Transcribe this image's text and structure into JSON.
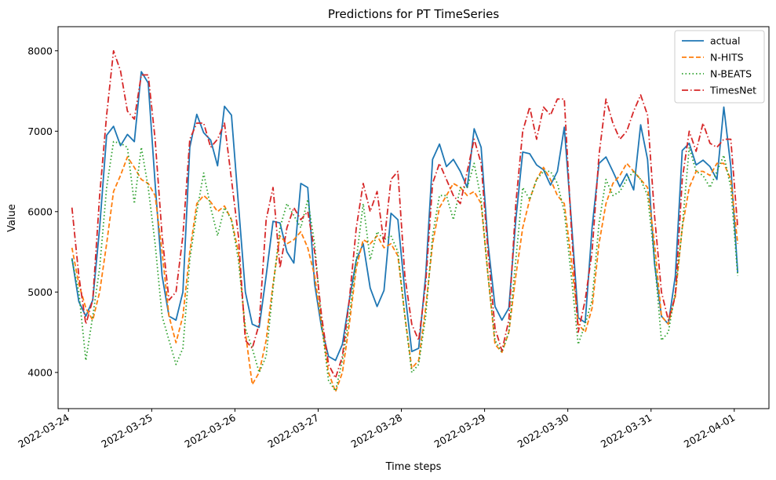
{
  "chart_data": {
    "type": "line",
    "title": "Predictions for PT TimeSeries",
    "xlabel": "Time steps",
    "ylabel": "Value",
    "x_unit": "date",
    "xlim": [
      "2022-03-23T21:00",
      "2022-04-01T10:00"
    ],
    "ylim": [
      3550,
      8300
    ],
    "yticks": [
      4000,
      5000,
      6000,
      7000,
      8000
    ],
    "xticks": [
      "2022-03-24",
      "2022-03-25",
      "2022-03-26",
      "2022-03-27",
      "2022-03-28",
      "2022-03-29",
      "2022-03-30",
      "2022-03-31",
      "2022-04-01"
    ],
    "legend": "top-right",
    "grid": false,
    "series": [
      {
        "name": "actual",
        "color": "#1f77b4",
        "dash": "solid",
        "x": [
          "2022-03-24T01:00",
          "2022-03-24T03:00",
          "2022-03-24T05:00",
          "2022-03-24T07:00",
          "2022-03-24T09:00",
          "2022-03-24T11:00",
          "2022-03-24T13:00",
          "2022-03-24T15:00",
          "2022-03-24T17:00",
          "2022-03-24T19:00",
          "2022-03-24T21:00",
          "2022-03-24T23:00",
          "2022-03-25T01:00",
          "2022-03-25T03:00",
          "2022-03-25T05:00",
          "2022-03-25T07:00",
          "2022-03-25T09:00",
          "2022-03-25T11:00",
          "2022-03-25T13:00",
          "2022-03-25T15:00",
          "2022-03-25T17:00",
          "2022-03-25T19:00",
          "2022-03-25T21:00",
          "2022-03-25T23:00",
          "2022-03-26T01:00",
          "2022-03-26T03:00",
          "2022-03-26T05:00",
          "2022-03-26T07:00",
          "2022-03-26T09:00",
          "2022-03-26T11:00",
          "2022-03-26T13:00",
          "2022-03-26T15:00",
          "2022-03-26T17:00",
          "2022-03-26T19:00",
          "2022-03-26T21:00",
          "2022-03-26T23:00",
          "2022-03-27T01:00",
          "2022-03-27T03:00",
          "2022-03-27T05:00",
          "2022-03-27T07:00",
          "2022-03-27T09:00",
          "2022-03-27T11:00",
          "2022-03-27T13:00",
          "2022-03-27T15:00",
          "2022-03-27T17:00",
          "2022-03-27T19:00",
          "2022-03-27T21:00",
          "2022-03-27T23:00",
          "2022-03-28T01:00",
          "2022-03-28T03:00",
          "2022-03-28T05:00",
          "2022-03-28T07:00",
          "2022-03-28T09:00",
          "2022-03-28T11:00",
          "2022-03-28T13:00",
          "2022-03-28T15:00",
          "2022-03-28T17:00",
          "2022-03-28T19:00",
          "2022-03-28T21:00",
          "2022-03-28T23:00",
          "2022-03-29T01:00",
          "2022-03-29T03:00",
          "2022-03-29T05:00",
          "2022-03-29T07:00",
          "2022-03-29T09:00",
          "2022-03-29T11:00",
          "2022-03-29T13:00",
          "2022-03-29T15:00",
          "2022-03-29T17:00",
          "2022-03-29T19:00",
          "2022-03-29T21:00",
          "2022-03-29T23:00",
          "2022-03-30T01:00",
          "2022-03-30T03:00",
          "2022-03-30T05:00",
          "2022-03-30T07:00",
          "2022-03-30T09:00",
          "2022-03-30T11:00",
          "2022-03-30T13:00",
          "2022-03-30T15:00",
          "2022-03-30T17:00",
          "2022-03-30T19:00",
          "2022-03-30T21:00",
          "2022-03-30T23:00",
          "2022-03-31T01:00",
          "2022-03-31T03:00",
          "2022-03-31T05:00",
          "2022-03-31T07:00",
          "2022-03-31T09:00",
          "2022-03-31T11:00",
          "2022-03-31T13:00",
          "2022-03-31T15:00",
          "2022-03-31T17:00",
          "2022-03-31T19:00",
          "2022-03-31T21:00",
          "2022-03-31T23:00",
          "2022-04-01T01:00"
        ],
        "values": [
          5420,
          4880,
          4700,
          4900,
          5800,
          6950,
          7060,
          6820,
          6960,
          6870,
          7740,
          7600,
          6350,
          5200,
          4700,
          4650,
          5000,
          6800,
          7210,
          6980,
          6890,
          6570,
          7310,
          7200,
          6100,
          5000,
          4600,
          4560,
          5200,
          5880,
          5860,
          5500,
          5360,
          6350,
          6300,
          5100,
          4550,
          4200,
          4150,
          4350,
          4900,
          5400,
          5600,
          5050,
          4820,
          5020,
          5980,
          5900,
          5000,
          4260,
          4300,
          5200,
          6650,
          6840,
          6560,
          6650,
          6500,
          6300,
          7030,
          6800,
          5600,
          4820,
          4650,
          4800,
          5900,
          6740,
          6720,
          6580,
          6520,
          6330,
          6500,
          7050,
          5900,
          4680,
          4620,
          5800,
          6600,
          6680,
          6500,
          6310,
          6470,
          6270,
          7080,
          6650,
          5350,
          4700,
          4600,
          5200,
          6760,
          6850,
          6580,
          6640,
          6560,
          6400,
          7300,
          6560,
          5240
        ]
      },
      {
        "name": "N-HITS",
        "color": "#ff7f0e",
        "dash": "dashed",
        "x": [
          "2022-03-24T01:00",
          "2022-03-24T03:00",
          "2022-03-24T05:00",
          "2022-03-24T07:00",
          "2022-03-24T09:00",
          "2022-03-24T11:00",
          "2022-03-24T13:00",
          "2022-03-24T15:00",
          "2022-03-24T17:00",
          "2022-03-24T19:00",
          "2022-03-24T21:00",
          "2022-03-24T23:00",
          "2022-03-25T01:00",
          "2022-03-25T03:00",
          "2022-03-25T05:00",
          "2022-03-25T07:00",
          "2022-03-25T09:00",
          "2022-03-25T11:00",
          "2022-03-25T13:00",
          "2022-03-25T15:00",
          "2022-03-25T17:00",
          "2022-03-25T19:00",
          "2022-03-25T21:00",
          "2022-03-25T23:00",
          "2022-03-26T01:00",
          "2022-03-26T03:00",
          "2022-03-26T05:00",
          "2022-03-26T07:00",
          "2022-03-26T09:00",
          "2022-03-26T11:00",
          "2022-03-26T13:00",
          "2022-03-26T15:00",
          "2022-03-26T17:00",
          "2022-03-26T19:00",
          "2022-03-26T21:00",
          "2022-03-26T23:00",
          "2022-03-27T01:00",
          "2022-03-27T03:00",
          "2022-03-27T05:00",
          "2022-03-27T07:00",
          "2022-03-27T09:00",
          "2022-03-27T11:00",
          "2022-03-27T13:00",
          "2022-03-27T15:00",
          "2022-03-27T17:00",
          "2022-03-27T19:00",
          "2022-03-27T21:00",
          "2022-03-27T23:00",
          "2022-03-28T01:00",
          "2022-03-28T03:00",
          "2022-03-28T05:00",
          "2022-03-28T07:00",
          "2022-03-28T09:00",
          "2022-03-28T11:00",
          "2022-03-28T13:00",
          "2022-03-28T15:00",
          "2022-03-28T17:00",
          "2022-03-28T19:00",
          "2022-03-28T21:00",
          "2022-03-28T23:00",
          "2022-03-29T01:00",
          "2022-03-29T03:00",
          "2022-03-29T05:00",
          "2022-03-29T07:00",
          "2022-03-29T09:00",
          "2022-03-29T11:00",
          "2022-03-29T13:00",
          "2022-03-29T15:00",
          "2022-03-29T17:00",
          "2022-03-29T19:00",
          "2022-03-29T21:00",
          "2022-03-29T23:00",
          "2022-03-30T01:00",
          "2022-03-30T03:00",
          "2022-03-30T05:00",
          "2022-03-30T07:00",
          "2022-03-30T09:00",
          "2022-03-30T11:00",
          "2022-03-30T13:00",
          "2022-03-30T15:00",
          "2022-03-30T17:00",
          "2022-03-30T19:00",
          "2022-03-30T21:00",
          "2022-03-30T23:00",
          "2022-03-31T01:00",
          "2022-03-31T03:00",
          "2022-03-31T05:00",
          "2022-03-31T07:00",
          "2022-03-31T09:00",
          "2022-03-31T11:00",
          "2022-03-31T13:00",
          "2022-03-31T15:00",
          "2022-03-31T17:00",
          "2022-03-31T19:00",
          "2022-03-31T21:00",
          "2022-03-31T23:00",
          "2022-04-01T01:00"
        ],
        "values": [
          5550,
          5100,
          4800,
          4650,
          5000,
          5600,
          6250,
          6450,
          6680,
          6550,
          6400,
          6350,
          6200,
          5500,
          4700,
          4370,
          4700,
          5500,
          6100,
          6200,
          6120,
          6000,
          6070,
          5900,
          5500,
          4500,
          3850,
          4000,
          4400,
          5100,
          5700,
          5600,
          5650,
          5750,
          5550,
          5200,
          4600,
          4000,
          3760,
          4000,
          4600,
          5300,
          5650,
          5600,
          5700,
          5550,
          5600,
          5450,
          4700,
          4050,
          4150,
          4800,
          5600,
          6050,
          6200,
          6350,
          6300,
          6200,
          6250,
          6100,
          5200,
          4350,
          4250,
          4500,
          5200,
          5800,
          6150,
          6400,
          6550,
          6400,
          6200,
          6100,
          5400,
          4600,
          4500,
          4800,
          5600,
          6100,
          6350,
          6450,
          6600,
          6500,
          6400,
          6300,
          5600,
          4700,
          4600,
          4950,
          5800,
          6300,
          6500,
          6500,
          6450,
          6600,
          6600,
          6400,
          5600
        ]
      },
      {
        "name": "N-BEATS",
        "color": "#2ca02c",
        "dash": "dotted",
        "x": [
          "2022-03-24T01:00",
          "2022-03-24T03:00",
          "2022-03-24T05:00",
          "2022-03-24T07:00",
          "2022-03-24T09:00",
          "2022-03-24T11:00",
          "2022-03-24T13:00",
          "2022-03-24T15:00",
          "2022-03-24T17:00",
          "2022-03-24T19:00",
          "2022-03-24T21:00",
          "2022-03-24T23:00",
          "2022-03-25T01:00",
          "2022-03-25T03:00",
          "2022-03-25T05:00",
          "2022-03-25T07:00",
          "2022-03-25T09:00",
          "2022-03-25T11:00",
          "2022-03-25T13:00",
          "2022-03-25T15:00",
          "2022-03-25T17:00",
          "2022-03-25T19:00",
          "2022-03-25T21:00",
          "2022-03-25T23:00",
          "2022-03-26T01:00",
          "2022-03-26T03:00",
          "2022-03-26T05:00",
          "2022-03-26T07:00",
          "2022-03-26T09:00",
          "2022-03-26T11:00",
          "2022-03-26T13:00",
          "2022-03-26T15:00",
          "2022-03-26T17:00",
          "2022-03-26T19:00",
          "2022-03-26T21:00",
          "2022-03-26T23:00",
          "2022-03-27T01:00",
          "2022-03-27T03:00",
          "2022-03-27T05:00",
          "2022-03-27T07:00",
          "2022-03-27T09:00",
          "2022-03-27T11:00",
          "2022-03-27T13:00",
          "2022-03-27T15:00",
          "2022-03-27T17:00",
          "2022-03-27T19:00",
          "2022-03-27T21:00",
          "2022-03-27T23:00",
          "2022-03-28T01:00",
          "2022-03-28T03:00",
          "2022-03-28T05:00",
          "2022-03-28T07:00",
          "2022-03-28T09:00",
          "2022-03-28T11:00",
          "2022-03-28T13:00",
          "2022-03-28T15:00",
          "2022-03-28T17:00",
          "2022-03-28T19:00",
          "2022-03-28T21:00",
          "2022-03-28T23:00",
          "2022-03-29T01:00",
          "2022-03-29T03:00",
          "2022-03-29T05:00",
          "2022-03-29T07:00",
          "2022-03-29T09:00",
          "2022-03-29T11:00",
          "2022-03-29T13:00",
          "2022-03-29T15:00",
          "2022-03-29T17:00",
          "2022-03-29T19:00",
          "2022-03-29T21:00",
          "2022-03-29T23:00",
          "2022-03-30T01:00",
          "2022-03-30T03:00",
          "2022-03-30T05:00",
          "2022-03-30T07:00",
          "2022-03-30T09:00",
          "2022-03-30T11:00",
          "2022-03-30T13:00",
          "2022-03-30T15:00",
          "2022-03-30T17:00",
          "2022-03-30T19:00",
          "2022-03-30T21:00",
          "2022-03-30T23:00",
          "2022-03-31T01:00",
          "2022-03-31T03:00",
          "2022-03-31T05:00",
          "2022-03-31T07:00",
          "2022-03-31T09:00",
          "2022-03-31T11:00",
          "2022-03-31T13:00",
          "2022-03-31T15:00",
          "2022-03-31T17:00",
          "2022-03-31T19:00",
          "2022-03-31T21:00",
          "2022-03-31T23:00",
          "2022-04-01T01:00"
        ],
        "values": [
          5400,
          5000,
          4150,
          4700,
          5300,
          6300,
          6870,
          6850,
          6800,
          6100,
          6800,
          6300,
          5600,
          4700,
          4400,
          4100,
          4300,
          5400,
          6000,
          6480,
          6050,
          5700,
          6050,
          5900,
          5400,
          4550,
          4300,
          4000,
          4200,
          5050,
          5800,
          6100,
          5950,
          5800,
          6150,
          5600,
          4600,
          3900,
          3770,
          4150,
          4700,
          5400,
          6100,
          5400,
          5750,
          5650,
          5700,
          5500,
          4700,
          4000,
          4100,
          4700,
          5700,
          6200,
          6200,
          5900,
          6300,
          6300,
          6600,
          6150,
          5200,
          4400,
          4250,
          4500,
          5400,
          6300,
          6150,
          6400,
          6500,
          6500,
          6350,
          6000,
          5200,
          4350,
          4600,
          4900,
          5850,
          6400,
          6200,
          6250,
          6400,
          6500,
          6400,
          6200,
          5400,
          4400,
          4500,
          5000,
          5800,
          6800,
          6500,
          6450,
          6300,
          6500,
          6700,
          6300,
          5200
        ]
      },
      {
        "name": "TimesNet",
        "color": "#d62728",
        "dash": "dashdot",
        "x": [
          "2022-03-24T01:00",
          "2022-03-24T03:00",
          "2022-03-24T05:00",
          "2022-03-24T07:00",
          "2022-03-24T09:00",
          "2022-03-24T11:00",
          "2022-03-24T13:00",
          "2022-03-24T15:00",
          "2022-03-24T17:00",
          "2022-03-24T19:00",
          "2022-03-24T21:00",
          "2022-03-24T23:00",
          "2022-03-25T01:00",
          "2022-03-25T03:00",
          "2022-03-25T05:00",
          "2022-03-25T07:00",
          "2022-03-25T09:00",
          "2022-03-25T11:00",
          "2022-03-25T13:00",
          "2022-03-25T15:00",
          "2022-03-25T17:00",
          "2022-03-25T19:00",
          "2022-03-25T21:00",
          "2022-03-25T23:00",
          "2022-03-26T01:00",
          "2022-03-26T03:00",
          "2022-03-26T05:00",
          "2022-03-26T07:00",
          "2022-03-26T09:00",
          "2022-03-26T11:00",
          "2022-03-26T13:00",
          "2022-03-26T15:00",
          "2022-03-26T17:00",
          "2022-03-26T19:00",
          "2022-03-26T21:00",
          "2022-03-26T23:00",
          "2022-03-27T01:00",
          "2022-03-27T03:00",
          "2022-03-27T05:00",
          "2022-03-27T07:00",
          "2022-03-27T09:00",
          "2022-03-27T11:00",
          "2022-03-27T13:00",
          "2022-03-27T15:00",
          "2022-03-27T17:00",
          "2022-03-27T19:00",
          "2022-03-27T21:00",
          "2022-03-27T23:00",
          "2022-03-28T01:00",
          "2022-03-28T03:00",
          "2022-03-28T05:00",
          "2022-03-28T07:00",
          "2022-03-28T09:00",
          "2022-03-28T11:00",
          "2022-03-28T13:00",
          "2022-03-28T15:00",
          "2022-03-28T17:00",
          "2022-03-28T19:00",
          "2022-03-28T21:00",
          "2022-03-28T23:00",
          "2022-03-29T01:00",
          "2022-03-29T03:00",
          "2022-03-29T05:00",
          "2022-03-29T07:00",
          "2022-03-29T09:00",
          "2022-03-29T11:00",
          "2022-03-29T13:00",
          "2022-03-29T15:00",
          "2022-03-29T17:00",
          "2022-03-29T19:00",
          "2022-03-29T21:00",
          "2022-03-29T23:00",
          "2022-03-30T01:00",
          "2022-03-30T03:00",
          "2022-03-30T05:00",
          "2022-03-30T07:00",
          "2022-03-30T09:00",
          "2022-03-30T11:00",
          "2022-03-30T13:00",
          "2022-03-30T15:00",
          "2022-03-30T17:00",
          "2022-03-30T19:00",
          "2022-03-30T21:00",
          "2022-03-30T23:00",
          "2022-03-31T01:00",
          "2022-03-31T03:00",
          "2022-03-31T05:00",
          "2022-03-31T07:00",
          "2022-03-31T09:00",
          "2022-03-31T11:00",
          "2022-03-31T13:00",
          "2022-03-31T15:00",
          "2022-03-31T17:00",
          "2022-03-31T19:00",
          "2022-03-31T21:00",
          "2022-03-31T23:00",
          "2022-04-01T01:00"
        ],
        "values": [
          6050,
          5200,
          4600,
          4900,
          6200,
          7200,
          8000,
          7750,
          7250,
          7150,
          7700,
          7700,
          6900,
          5700,
          4900,
          5000,
          5700,
          6900,
          7100,
          7100,
          6800,
          6900,
          7100,
          6400,
          5700,
          4400,
          4300,
          4600,
          5900,
          6300,
          5300,
          5800,
          6050,
          5900,
          6000,
          5500,
          4700,
          4100,
          3930,
          4200,
          4900,
          5800,
          6350,
          6000,
          6250,
          5600,
          6400,
          6500,
          5200,
          4600,
          4400,
          5100,
          6350,
          6600,
          6400,
          6200,
          6100,
          6500,
          6900,
          6600,
          5500,
          4550,
          4270,
          4650,
          6100,
          7000,
          7300,
          6900,
          7300,
          7200,
          7400,
          7400,
          5800,
          4500,
          4900,
          5500,
          6700,
          7400,
          7100,
          6900,
          7000,
          7250,
          7450,
          7200,
          5950,
          5000,
          4650,
          4950,
          6400,
          7000,
          6750,
          7100,
          6850,
          6800,
          6900,
          6900,
          5800
        ]
      }
    ]
  }
}
